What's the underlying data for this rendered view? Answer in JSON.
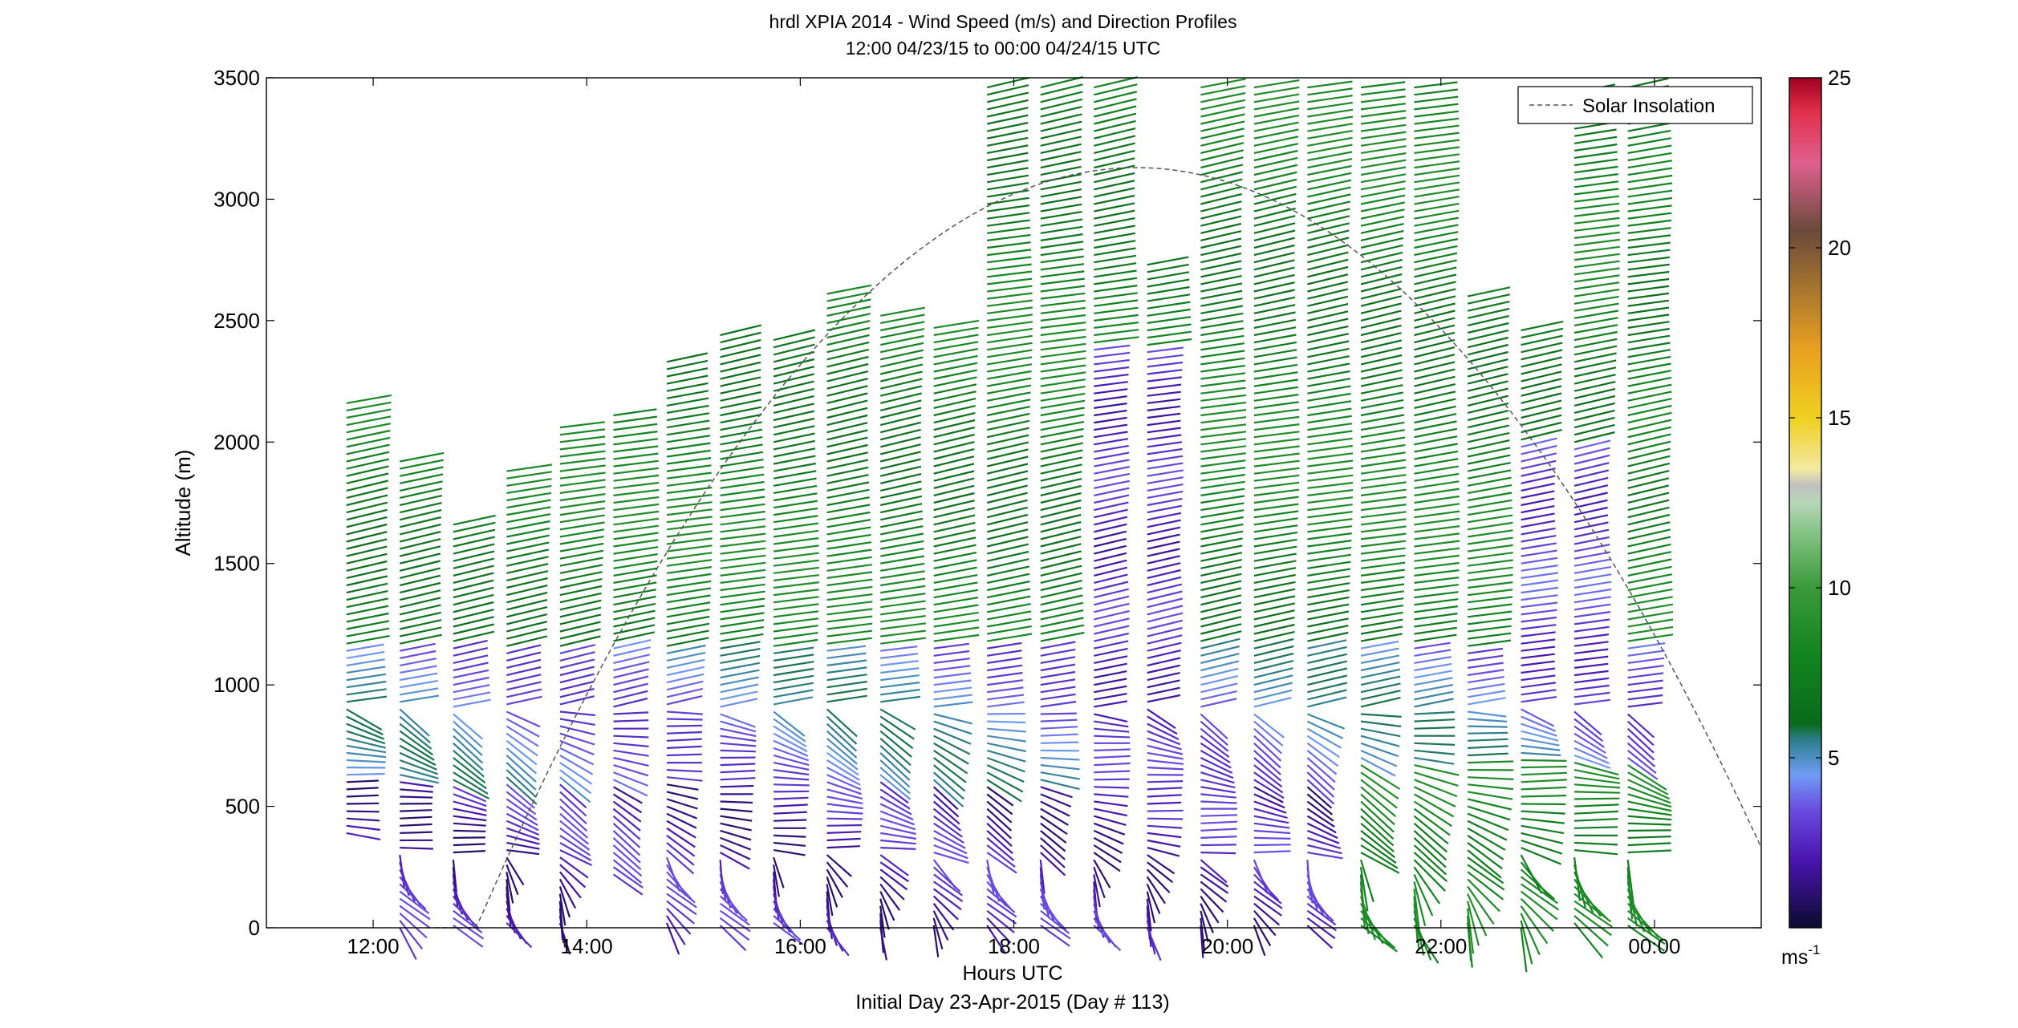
{
  "chart_data": {
    "type": "wind_barb_profile",
    "title_line1": "hrdl XPIA 2014 - Wind Speed (m/s) and Direction Profiles",
    "title_line2": "12:00 04/23/15 to 00:00 04/24/15  UTC",
    "xlabel": "Hours UTC",
    "xlabel2": "Initial Day 23-Apr-2015 (Day # 113)",
    "ylabel": "Altitude (m)",
    "xlim_hours": [
      11.0,
      25.0
    ],
    "ylim": [
      0,
      3500
    ],
    "x_ticks": [
      {
        "hour": 12,
        "label": "12:00"
      },
      {
        "hour": 14,
        "label": "14:00"
      },
      {
        "hour": 16,
        "label": "16:00"
      },
      {
        "hour": 18,
        "label": "18:00"
      },
      {
        "hour": 20,
        "label": "20:00"
      },
      {
        "hour": 22,
        "label": "22:00"
      },
      {
        "hour": 24,
        "label": "00:00"
      }
    ],
    "y_ticks": [
      0,
      500,
      1000,
      1500,
      2000,
      2500,
      3000,
      3500
    ],
    "legend": {
      "label": "Solar Insolation",
      "position": "top-right"
    },
    "solar_insolation": {
      "start_hour": 12.5,
      "peak_hour": 19.15,
      "peak_altitude": 3130,
      "end_hour": 25.0,
      "end_altitude": 330
    },
    "colorbar": {
      "min": 0,
      "max": 25,
      "unit": "ms",
      "unit_exponent": "-1",
      "tick_values": [
        5,
        10,
        15,
        20,
        25
      ],
      "tick_labels": [
        "5",
        "10",
        "15",
        "20",
        "25"
      ],
      "stops": [
        {
          "v": 0.0,
          "c": "#0b0b30"
        },
        {
          "v": 2.0,
          "c": "#4a14b0"
        },
        {
          "v": 3.5,
          "c": "#6a4ee0"
        },
        {
          "v": 4.5,
          "c": "#6f9cf5"
        },
        {
          "v": 5.5,
          "c": "#2e7f90"
        },
        {
          "v": 6.0,
          "c": "#0a6b1a"
        },
        {
          "v": 8.0,
          "c": "#11841f"
        },
        {
          "v": 10.0,
          "c": "#3a9a3a"
        },
        {
          "v": 11.5,
          "c": "#7ec07e"
        },
        {
          "v": 12.5,
          "c": "#b8d7b8"
        },
        {
          "v": 13.0,
          "c": "#c0c0c0"
        },
        {
          "v": 13.5,
          "c": "#f3e9a0"
        },
        {
          "v": 15.0,
          "c": "#f0d020"
        },
        {
          "v": 17.0,
          "c": "#e8a020"
        },
        {
          "v": 19.0,
          "c": "#a07030"
        },
        {
          "v": 20.5,
          "c": "#6a4a3a"
        },
        {
          "v": 22.5,
          "c": "#e06090"
        },
        {
          "v": 24.0,
          "c": "#e0304a"
        },
        {
          "v": 25.0,
          "c": "#a00020"
        }
      ]
    },
    "profiles": [
      {
        "hour": 11.75,
        "top": 2160,
        "bottom": 380
      },
      {
        "hour": 12.25,
        "top": 1920,
        "bottom": 0
      },
      {
        "hour": 12.75,
        "top": 1660,
        "bottom": 0
      },
      {
        "hour": 13.25,
        "top": 1880,
        "bottom": 0
      },
      {
        "hour": 13.75,
        "top": 2060,
        "bottom": 0
      },
      {
        "hour": 14.25,
        "top": 2110,
        "bottom": 200
      },
      {
        "hour": 14.75,
        "top": 2330,
        "bottom": 0
      },
      {
        "hour": 15.25,
        "top": 2440,
        "bottom": 0
      },
      {
        "hour": 15.75,
        "top": 2420,
        "bottom": 0
      },
      {
        "hour": 16.25,
        "top": 2610,
        "bottom": 0
      },
      {
        "hour": 16.75,
        "top": 2520,
        "bottom": 0
      },
      {
        "hour": 17.25,
        "top": 2470,
        "bottom": 0
      },
      {
        "hour": 17.75,
        "top": 3460,
        "bottom": 0
      },
      {
        "hour": 18.25,
        "top": 3460,
        "bottom": 0
      },
      {
        "hour": 18.75,
        "top": 3460,
        "bottom": 0
      },
      {
        "hour": 19.25,
        "top": 2730,
        "bottom": 0
      },
      {
        "hour": 19.75,
        "top": 3460,
        "bottom": 0
      },
      {
        "hour": 20.25,
        "top": 3460,
        "bottom": 0
      },
      {
        "hour": 20.75,
        "top": 3460,
        "bottom": 0
      },
      {
        "hour": 21.25,
        "top": 3460,
        "bottom": 0
      },
      {
        "hour": 21.75,
        "top": 3460,
        "bottom": 0
      },
      {
        "hour": 22.25,
        "top": 2600,
        "bottom": 0
      },
      {
        "hour": 22.75,
        "top": 2460,
        "bottom": 0
      },
      {
        "hour": 23.25,
        "top": 3440,
        "bottom": 0
      },
      {
        "hour": 23.75,
        "top": 3460,
        "bottom": 0
      }
    ]
  }
}
